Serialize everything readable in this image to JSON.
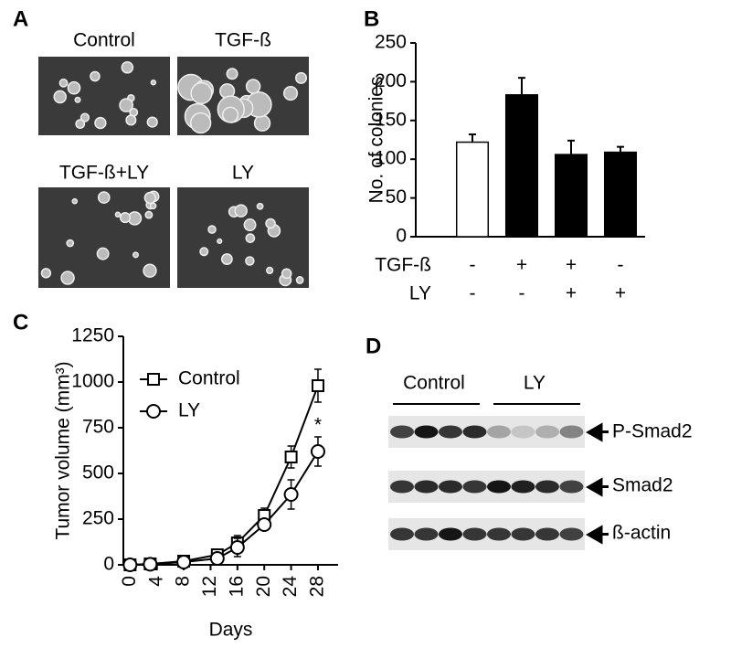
{
  "panel_a": {
    "label": "A",
    "images": [
      "Control",
      "TGF-ß",
      "TGF-ß+LY",
      "LY"
    ]
  },
  "chart_data": [
    {
      "type": "bar",
      "panel_label": "B",
      "y_label": "No.  of colonies",
      "categories": [
        null,
        null,
        null,
        null
      ],
      "values": [
        122,
        183,
        106,
        109
      ],
      "errors": [
        10,
        22,
        18,
        7
      ],
      "colors": [
        "#ffffff",
        "#000000",
        "#000000",
        "#000000"
      ],
      "ylim": [
        0,
        250
      ],
      "yticks": [
        0,
        50,
        100,
        150,
        200,
        250
      ],
      "treatments": [
        {
          "name": "TGF-ß",
          "levels": [
            "-",
            "+",
            "+",
            "-"
          ]
        },
        {
          "name": "LY",
          "levels": [
            "-",
            "-",
            "+",
            "+"
          ]
        }
      ]
    },
    {
      "type": "line",
      "panel_label": "C",
      "y_label": "Tumor volume (mm³)",
      "x_label": "Days",
      "x": [
        0,
        3,
        8,
        13,
        16,
        20,
        24,
        28
      ],
      "series": [
        {
          "name": "Control",
          "marker": "square",
          "color": "#000000",
          "values": [
            0,
            5,
            20,
            55,
            120,
            270,
            590,
            980
          ],
          "errors": [
            0,
            5,
            10,
            30,
            40,
            40,
            60,
            90
          ]
        },
        {
          "name": "LY",
          "marker": "circle",
          "color": "#000000",
          "values": [
            0,
            3,
            15,
            35,
            95,
            220,
            385,
            620
          ],
          "errors": [
            0,
            5,
            10,
            30,
            50,
            30,
            80,
            80
          ]
        }
      ],
      "annotations": [
        "*"
      ],
      "xlim": [
        -1,
        31
      ],
      "xticks": [
        0,
        4,
        8,
        12,
        16,
        20,
        24,
        28
      ],
      "ylim": [
        0,
        1250
      ],
      "yticks": [
        0,
        250,
        500,
        750,
        1000,
        1250
      ]
    }
  ],
  "panel_d": {
    "label": "D",
    "groups": [
      "Control",
      "LY"
    ],
    "rows": [
      "P-Smad2",
      "Smad2",
      "ß-actin"
    ]
  }
}
